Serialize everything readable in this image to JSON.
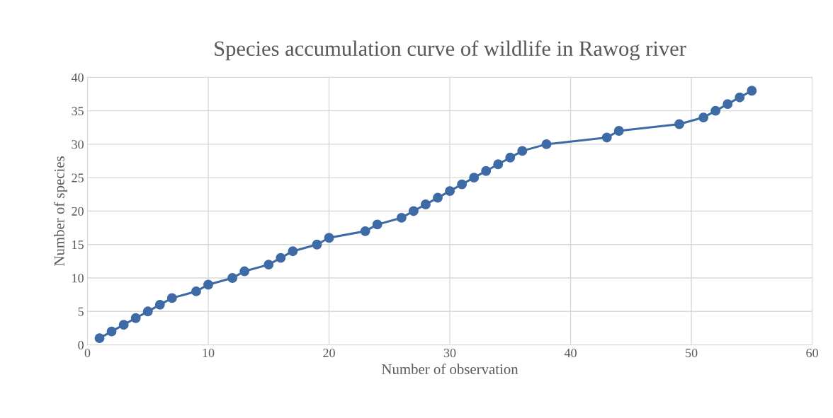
{
  "chart_data": {
    "type": "line",
    "title": "Species accumulation curve of wildlife in Rawog river",
    "xlabel": "Number of observation",
    "ylabel": "Number of species",
    "x": [
      1,
      2,
      3,
      4,
      5,
      6,
      7,
      9,
      10,
      12,
      13,
      15,
      16,
      17,
      19,
      20,
      23,
      24,
      26,
      27,
      28,
      29,
      30,
      31,
      32,
      33,
      34,
      35,
      36,
      38,
      43,
      44,
      49,
      51,
      52,
      53,
      54,
      55
    ],
    "series": [
      {
        "color": "#3e6aa6",
        "values": [
          1,
          2,
          3,
          4,
          5,
          6,
          7,
          8,
          9,
          10,
          11,
          12,
          13,
          14,
          15,
          16,
          17,
          18,
          19,
          20,
          21,
          22,
          23,
          24,
          25,
          26,
          27,
          28,
          29,
          30,
          31,
          32,
          33,
          34,
          35,
          36,
          37,
          38
        ]
      }
    ],
    "xlim": [
      0,
      60
    ],
    "xticks": [
      0,
      10,
      20,
      30,
      40,
      50,
      60
    ],
    "ylim": [
      0,
      40
    ],
    "yticks": [
      0,
      5,
      10,
      15,
      20,
      25,
      30,
      35,
      40
    ],
    "grid": true,
    "marker": "circle",
    "line_style": "solid"
  }
}
